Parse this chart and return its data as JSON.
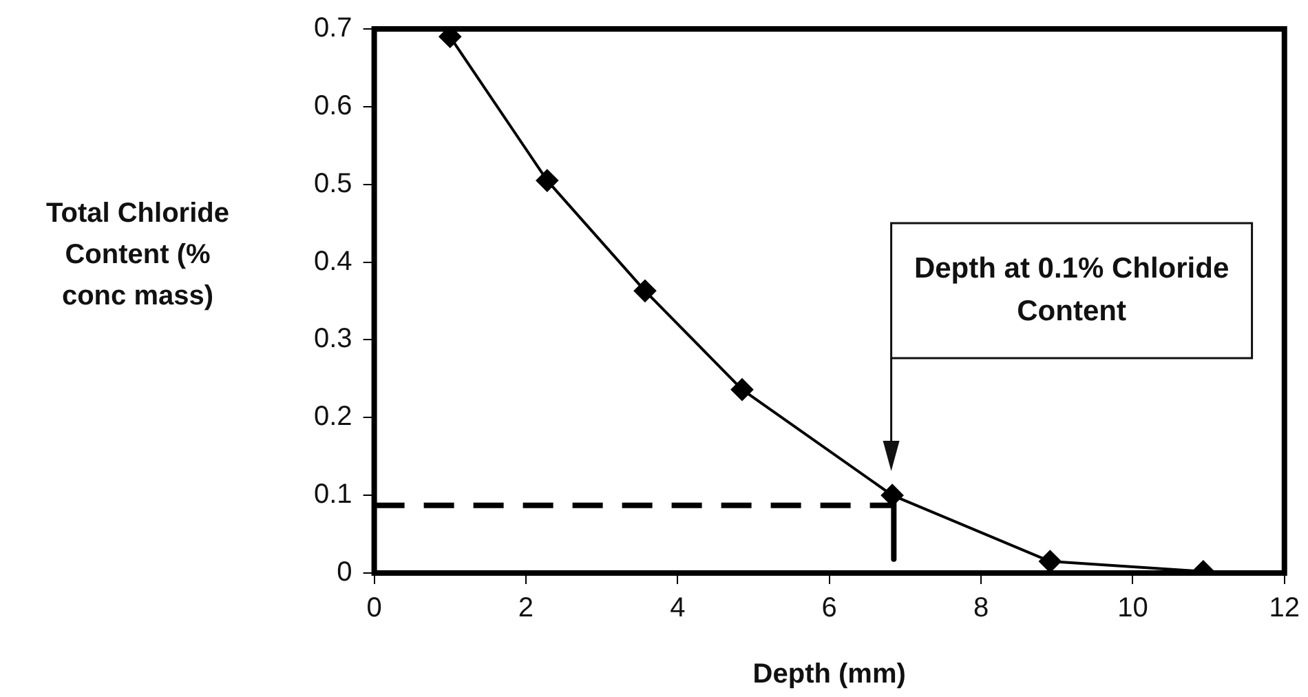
{
  "chart_data": {
    "type": "line",
    "xlabel": "Depth (mm)",
    "ylabel": "Total Chloride Content (% conc mass)",
    "xlim": [
      0,
      12
    ],
    "xticks": [
      0,
      2,
      4,
      6,
      8,
      10,
      12
    ],
    "ylim": [
      0,
      0.7
    ],
    "yticks": [
      0,
      0.1,
      0.2,
      0.3,
      0.4,
      0.5,
      0.6,
      0.7
    ],
    "grid": false,
    "legend": false,
    "marker": "diamond",
    "line_style": "solid",
    "series": [
      {
        "color": "#000000",
        "x": [
          1.0,
          2.28,
          3.57,
          4.85,
          6.83,
          8.91,
          10.93
        ],
        "values": [
          0.69,
          0.505,
          0.363,
          0.236,
          0.1,
          0.015,
          0.002
        ]
      },
      {
        "color": "#000000",
        "x": [
          0,
          6.83
        ],
        "values": [
          0.087,
          0.087
        ],
        "marker": "none",
        "line_style": "dashed"
      },
      {
        "color": "#000000",
        "x": [
          6.85,
          6.85
        ],
        "values": [
          0.1,
          0.018
        ],
        "marker": "none",
        "line_style": "solid"
      }
    ],
    "annotations": [
      "Depth at 0.1% Chloride Content"
    ]
  }
}
